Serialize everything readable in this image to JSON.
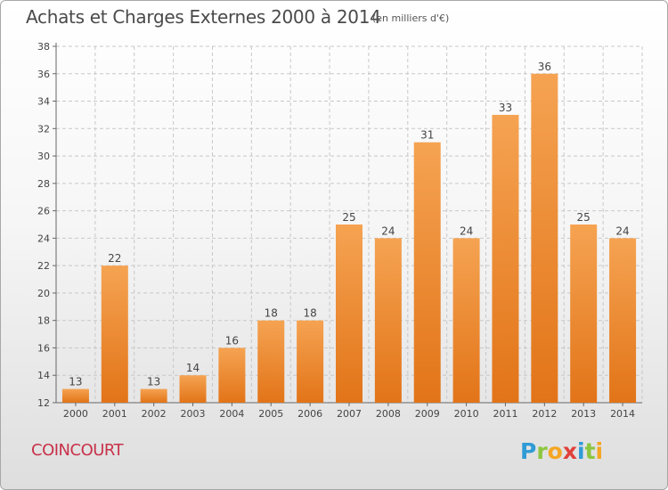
{
  "title": "Achats et Charges Externes 2000 à 2014",
  "subtitle": "(en milliers d'€)",
  "commune": "COINCOURT",
  "logo_text": "Proxiti",
  "colors": {
    "bar_top": "#f5a352",
    "bar_bottom": "#e27418",
    "grid": "#c8c8c8",
    "commune_text": "#c8324a",
    "title_text": "#4a4a4a"
  },
  "chart_data": {
    "type": "bar",
    "categories": [
      "2000",
      "2001",
      "2002",
      "2003",
      "2004",
      "2005",
      "2006",
      "2007",
      "2008",
      "2009",
      "2010",
      "2011",
      "2012",
      "2013",
      "2014"
    ],
    "values": [
      13,
      22,
      13,
      14,
      16,
      18,
      18,
      25,
      24,
      31,
      24,
      33,
      36,
      25,
      24
    ],
    "title": "Achats et Charges Externes 2000 à 2014",
    "xlabel": "",
    "ylabel": "",
    "ylim": [
      12,
      38
    ],
    "yticks": [
      12,
      14,
      16,
      18,
      20,
      22,
      24,
      26,
      28,
      30,
      32,
      34,
      36,
      38
    ],
    "grid": true,
    "data_labels": true
  }
}
